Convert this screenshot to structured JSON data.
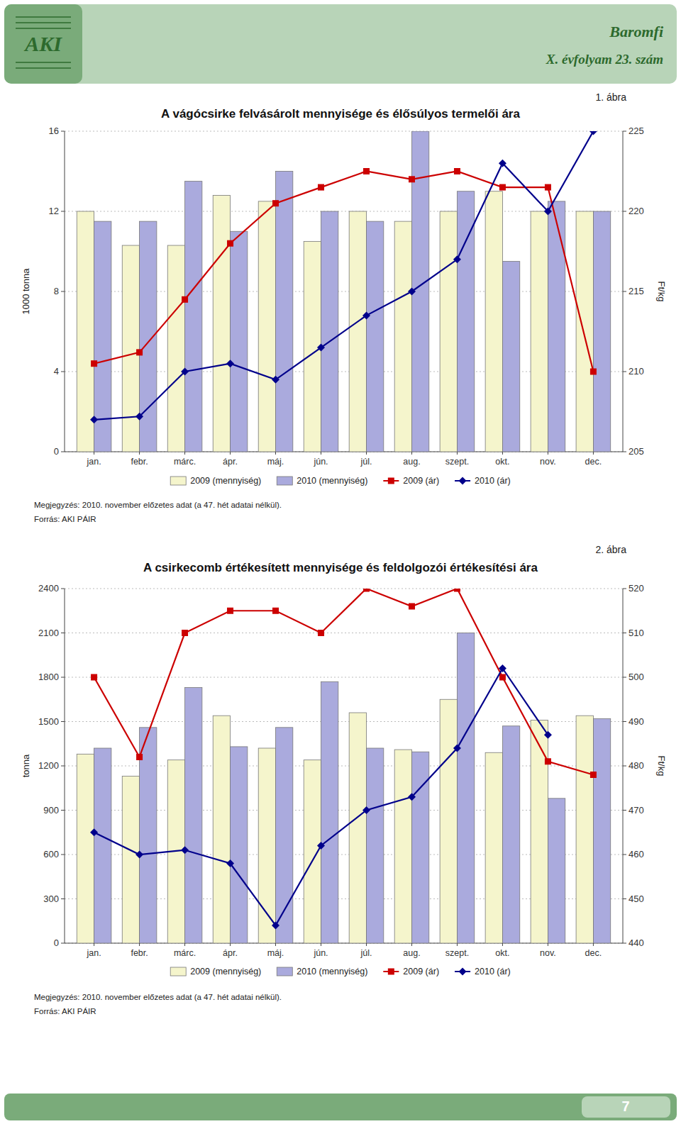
{
  "chart_data": [
    {
      "type": "bar",
      "title": "A vágócsirke felvásárolt mennyisége és élősúlyos termelői ára",
      "ylabel": "1000 tonna",
      "y2label": "Ft/kg",
      "categories": [
        "jan.",
        "febr.",
        "márc.",
        "ápr.",
        "máj.",
        "jún.",
        "júl.",
        "aug.",
        "szept.",
        "okt.",
        "nov.",
        "dec."
      ],
      "series": [
        {
          "name": "2009 (mennyiség)",
          "type": "bar",
          "color": "#f5f5cc",
          "values": [
            12.0,
            10.3,
            10.3,
            12.8,
            12.5,
            10.5,
            12.0,
            11.5,
            12.0,
            13.0,
            12.0,
            12.0
          ]
        },
        {
          "name": "2010 (mennyiség)",
          "type": "bar",
          "color": "#aaaadd",
          "values": [
            11.5,
            11.5,
            13.5,
            11.0,
            14.0,
            12.0,
            11.5,
            16.0,
            13.0,
            9.5,
            12.5,
            12.0
          ]
        },
        {
          "name": "2009 (ár)",
          "type": "line",
          "axis": "y2",
          "color": "#cc0000",
          "marker": "square",
          "line_style": "solid",
          "values": [
            210.5,
            211.2,
            214.5,
            218.0,
            220.5,
            221.5,
            222.5,
            222.0,
            222.5,
            221.5,
            221.5,
            210.0
          ]
        },
        {
          "name": "2010 (ár)",
          "type": "line",
          "axis": "y2",
          "color": "#00008b",
          "marker": "diamond",
          "line_style": "solid",
          "values": [
            207.0,
            207.2,
            210.0,
            210.5,
            209.5,
            211.5,
            213.5,
            215.0,
            217.0,
            223.0,
            220.0,
            225.0
          ]
        }
      ],
      "ylim": [
        0,
        16
      ],
      "yticks": [
        0,
        4,
        8,
        12,
        16
      ],
      "y2lim": [
        205,
        225
      ],
      "y2ticks": [
        205,
        210,
        215,
        220,
        225
      ],
      "grid": true,
      "legend": "bottom",
      "annotations": [
        "AKI",
        "Baromfi",
        "X. évfolyam 23. szám",
        "1. ábra",
        "Megjegyzés: 2010. november előzetes adat (a 47. hét adatai nélkül).",
        "Forrás: AKI PÁIR"
      ]
    },
    {
      "type": "bar",
      "title": "A csirkecomb értékesített mennyisége és feldolgozói értékesítési ára",
      "ylabel": "tonna",
      "y2label": "Ft/kg",
      "categories": [
        "jan.",
        "febr.",
        "márc.",
        "ápr.",
        "máj.",
        "jún.",
        "júl.",
        "aug.",
        "szept.",
        "okt.",
        "nov.",
        "dec."
      ],
      "series": [
        {
          "name": "2009 (mennyiség)",
          "type": "bar",
          "color": "#f5f5cc",
          "values": [
            1280,
            1130,
            1240,
            1540,
            1320,
            1240,
            1560,
            1310,
            1650,
            1290,
            1510,
            1540
          ]
        },
        {
          "name": "2010 (mennyiség)",
          "type": "bar",
          "color": "#aaaadd",
          "values": [
            1320,
            1460,
            1730,
            1330,
            1460,
            1770,
            1320,
            1295,
            2100,
            1470,
            980,
            1520
          ]
        },
        {
          "name": "2009 (ár)",
          "type": "line",
          "axis": "y2",
          "color": "#cc0000",
          "marker": "square",
          "line_style": "solid",
          "values": [
            500,
            482,
            510,
            515,
            515,
            510,
            520,
            516,
            520,
            500,
            481,
            478
          ]
        },
        {
          "name": "2010 (ár)",
          "type": "line",
          "axis": "y2",
          "color": "#00008b",
          "marker": "diamond",
          "line_style": "solid",
          "values": [
            465,
            460,
            461,
            458,
            444,
            462,
            470,
            473,
            484,
            502,
            487,
            null
          ]
        }
      ],
      "ylim": [
        0,
        2400
      ],
      "yticks": [
        0,
        300,
        600,
        900,
        1200,
        1500,
        1800,
        2100,
        2400
      ],
      "y2lim": [
        440,
        520
      ],
      "y2ticks": [
        440,
        450,
        460,
        470,
        480,
        490,
        500,
        510,
        520
      ],
      "grid": true,
      "legend": "bottom",
      "annotations": [
        "2. ábra",
        "Megjegyzés: 2010. november előzetes adat (a 47. hét adatai nélkül).",
        "Forrás: AKI PÁIR",
        "7"
      ]
    }
  ]
}
